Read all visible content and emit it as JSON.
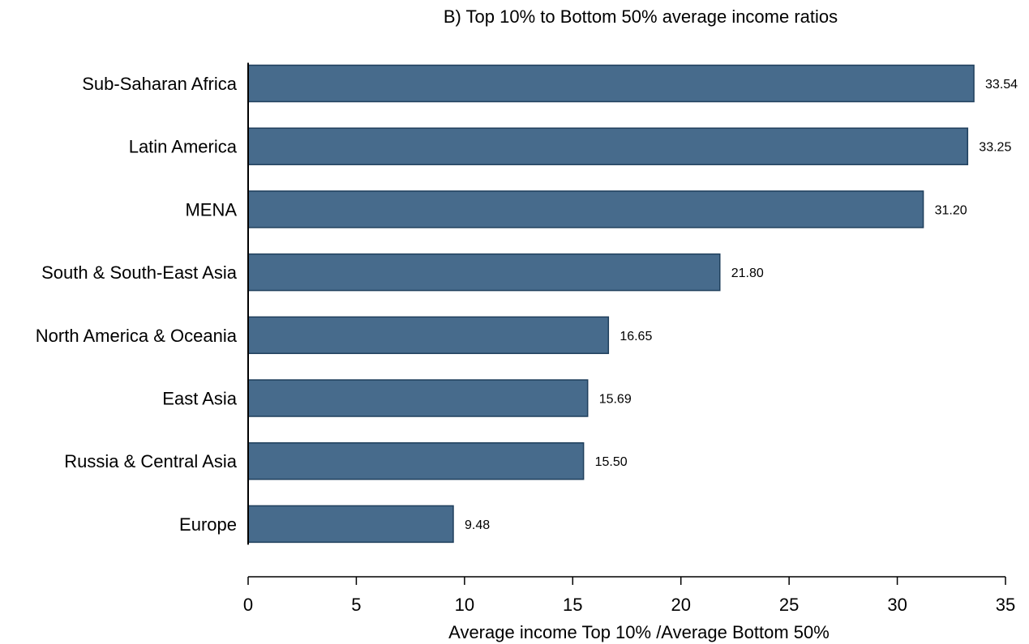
{
  "chart_data": {
    "type": "bar",
    "orientation": "horizontal",
    "title": "B) Top 10% to Bottom 50% average income ratios",
    "xlabel": "Average income Top 10% /Average Bottom 50%",
    "ylabel": "",
    "categories": [
      "Sub-Saharan Africa",
      "Latin America",
      "MENA",
      "South & South-East Asia",
      "North America & Oceania",
      "East Asia",
      "Russia & Central Asia",
      "Europe"
    ],
    "values": [
      33.54,
      33.25,
      31.2,
      21.8,
      16.65,
      15.69,
      15.5,
      9.48
    ],
    "value_labels": [
      "33.54",
      "33.25",
      "31.20",
      "21.80",
      "16.65",
      "15.69",
      "15.50",
      "9.48"
    ],
    "xlim": [
      0,
      35
    ],
    "xticks": [
      0,
      5,
      10,
      15,
      20,
      25,
      30,
      35
    ],
    "xtick_labels": [
      "0",
      "5",
      "10",
      "15",
      "20",
      "25",
      "30",
      "35"
    ],
    "grid": false,
    "legend": "none",
    "colors": {
      "bar_fill": "#476b8c",
      "bar_stroke": "#1f3f5c",
      "axis": "#000000",
      "text": "#000000"
    }
  }
}
